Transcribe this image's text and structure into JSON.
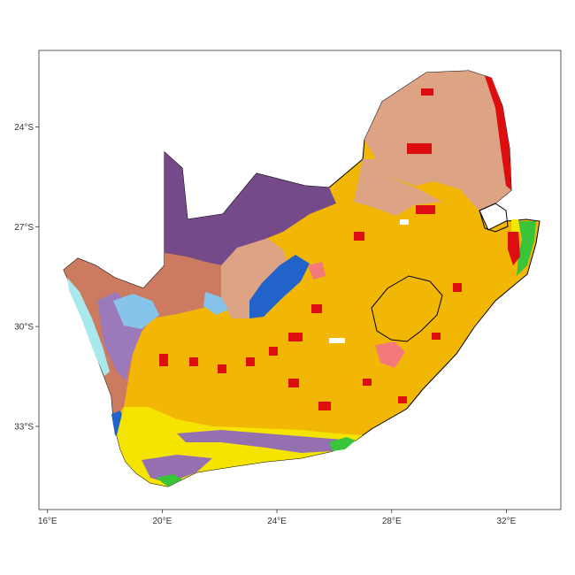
{
  "map": {
    "x_axis": {
      "range": [
        15.7,
        33.9
      ],
      "ticks": [
        {
          "value": 16,
          "label": "16°E"
        },
        {
          "value": 20,
          "label": "20°E"
        },
        {
          "value": 24,
          "label": "24°E"
        },
        {
          "value": 28,
          "label": "28°E"
        },
        {
          "value": 32,
          "label": "32°E"
        }
      ]
    },
    "y_axis": {
      "range": [
        -35.5,
        -21.7
      ],
      "ticks": [
        {
          "value": -24,
          "label": "24°S"
        },
        {
          "value": -27,
          "label": "27°S"
        },
        {
          "value": -30,
          "label": "30°S"
        },
        {
          "value": -33,
          "label": "33°S"
        }
      ]
    },
    "grid": false,
    "legend": "none",
    "colors": {
      "grassland": "#f2b705",
      "savanna": "#dca385",
      "kalahari": "#754a8a",
      "nama_karoo": "#cc7a60",
      "succulent_karoo": "#9b79bb",
      "fynbos_yellow": "#f5e400",
      "fynbos_purple": "#9470b0",
      "albany_thicket": "#39c43a",
      "forest_red": "#dd0d10",
      "dark_blue": "#2163c9",
      "light_blue": "#86c4ec",
      "cyan": "#a9e8ec",
      "pink": "#f3797b",
      "white": "#ffffff",
      "border": "#000000"
    }
  }
}
